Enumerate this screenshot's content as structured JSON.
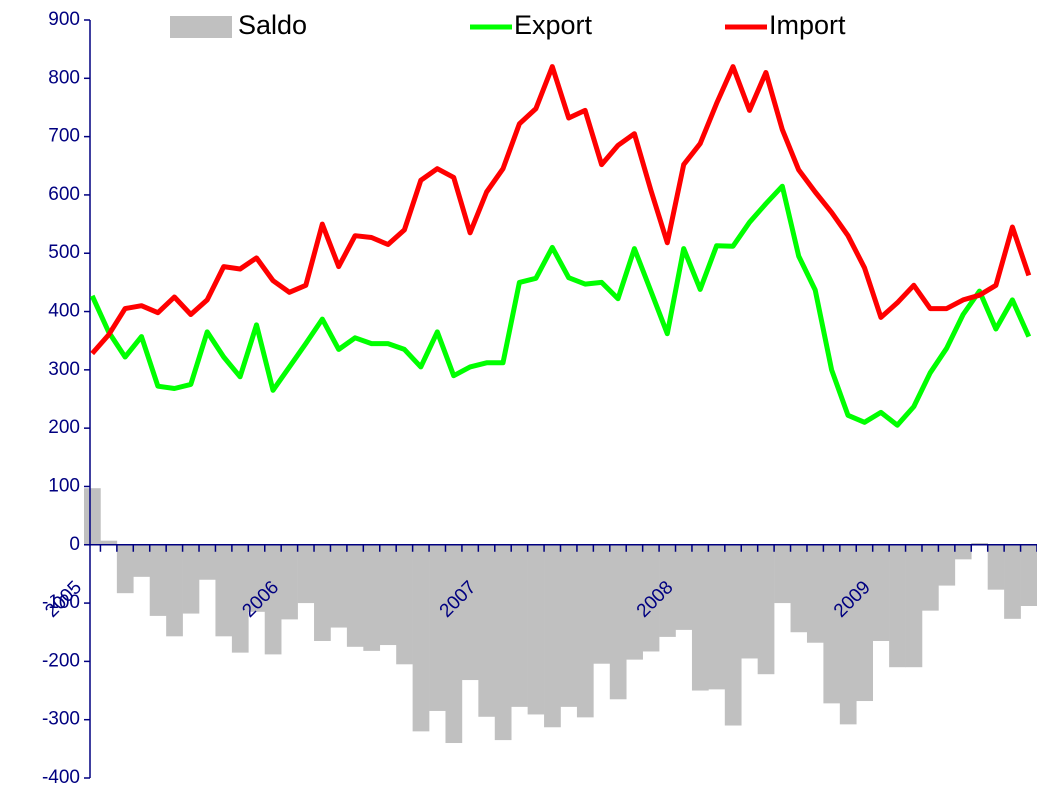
{
  "chart_data": {
    "type": "bar_line",
    "categories": [
      "2005",
      null,
      null,
      null,
      null,
      null,
      null,
      null,
      null,
      null,
      null,
      null,
      "2006",
      null,
      null,
      null,
      null,
      null,
      null,
      null,
      null,
      null,
      null,
      null,
      "2007",
      null,
      null,
      null,
      null,
      null,
      null,
      null,
      null,
      null,
      null,
      null,
      "2008",
      null,
      null,
      null,
      null,
      null,
      null,
      null,
      null,
      null,
      null,
      null,
      "2009",
      null,
      null,
      null,
      null,
      null,
      null,
      null,
      null,
      null
    ],
    "series": [
      {
        "name": "Saldo",
        "type": "bar",
        "color": "#c0c0c0",
        "values": [
          97,
          7,
          -83,
          -55,
          -122,
          -157,
          -118,
          -60,
          -157,
          -185,
          -115,
          -188,
          -128,
          -100,
          -165,
          -142,
          -175,
          -182,
          -172,
          -205,
          -320,
          -285,
          -340,
          -232,
          -295,
          -335,
          -278,
          -291,
          -313,
          -278,
          -296,
          -204,
          -265,
          -197,
          -183,
          -158,
          -146,
          -250,
          -248,
          -310,
          -195,
          -222,
          -100,
          -150,
          -168,
          -272,
          -308,
          -268,
          -165,
          -210,
          -210,
          -113,
          -70,
          -25,
          3,
          -77,
          -127,
          -105
        ]
      },
      {
        "name": "Export",
        "type": "line",
        "color": "#00ff00",
        "values": [
          427,
          365,
          322,
          357,
          272,
          268,
          275,
          365,
          322,
          288,
          377,
          265,
          305,
          345,
          387,
          335,
          355,
          345,
          345,
          335,
          305,
          365,
          290,
          305,
          312,
          312,
          450,
          457,
          510,
          458,
          447,
          450,
          422,
          508,
          435,
          362,
          508,
          438,
          513,
          512,
          553,
          585,
          615,
          495,
          437,
          300,
          222,
          210,
          227,
          205,
          237,
          295,
          337,
          395,
          435,
          370,
          420,
          357
        ]
      },
      {
        "name": "Import",
        "type": "line",
        "color": "#ff0000",
        "values": [
          328,
          360,
          405,
          410,
          398,
          425,
          395,
          420,
          477,
          473,
          492,
          453,
          433,
          445,
          550,
          477,
          530,
          527,
          515,
          540,
          625,
          645,
          630,
          535,
          605,
          645,
          722,
          748,
          820,
          732,
          745,
          652,
          685,
          705,
          608,
          518,
          652,
          688,
          757,
          820,
          745,
          810,
          712,
          643,
          605,
          570,
          530,
          475,
          390,
          415,
          445,
          405,
          405,
          420,
          428,
          445,
          545,
          462
        ]
      }
    ],
    "ylim": [
      -400,
      900
    ],
    "yticks": [
      -400,
      -300,
      -200,
      -100,
      0,
      100,
      200,
      300,
      400,
      500,
      600,
      700,
      800,
      900
    ],
    "legend": "top"
  }
}
